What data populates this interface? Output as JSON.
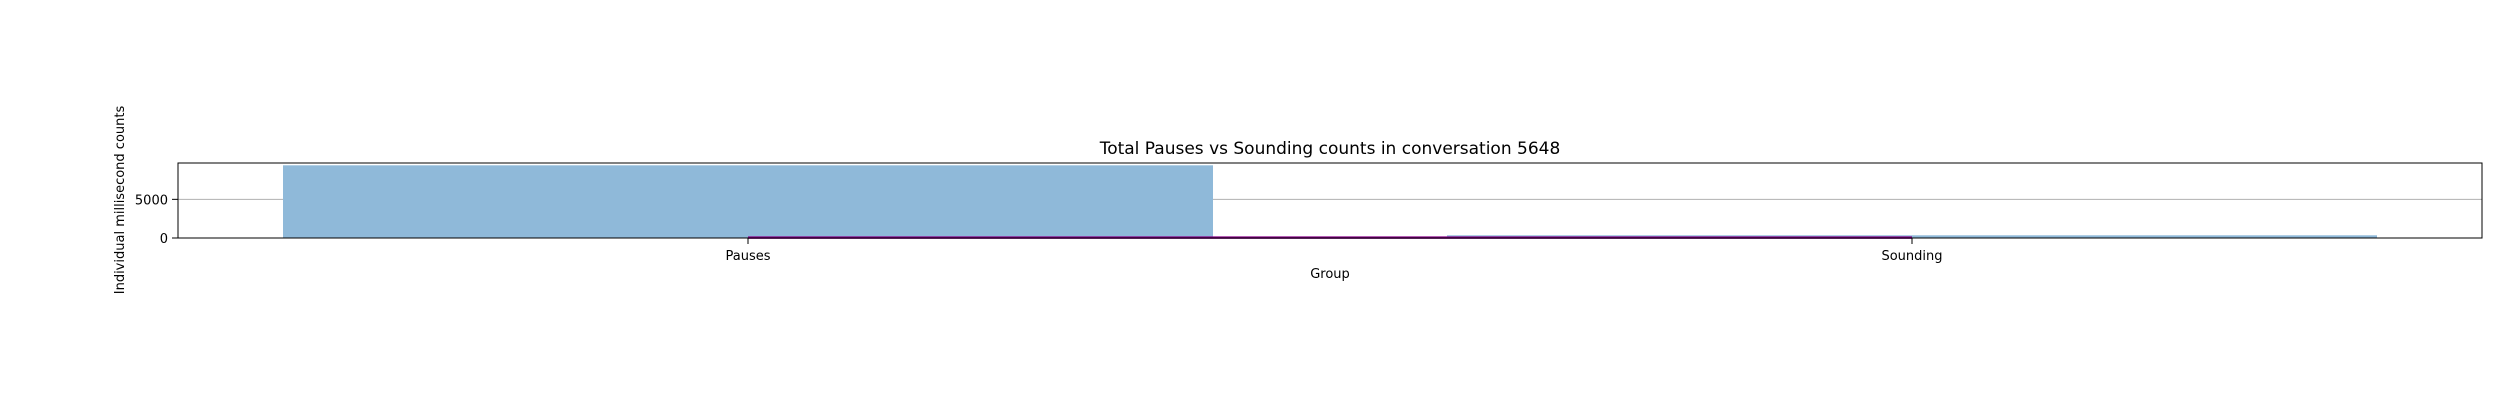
{
  "chart_data": {
    "type": "bar",
    "title": "Total Pauses vs Sounding counts in conversation 5648",
    "xlabel": "Group",
    "ylabel": "Individual millisecond counts",
    "categories": [
      "Pauses",
      "Sounding"
    ],
    "values": [
      9400,
      350
    ],
    "ylim": [
      0,
      9700
    ],
    "yticks": [
      0,
      5000
    ],
    "grid": true,
    "colors": {
      "bar": "#8fb9d9",
      "overlay_line": "#8b008b",
      "grid": "#b0b0b0",
      "axis": "#000000"
    },
    "overlay_line_values": [
      50,
      50
    ]
  }
}
